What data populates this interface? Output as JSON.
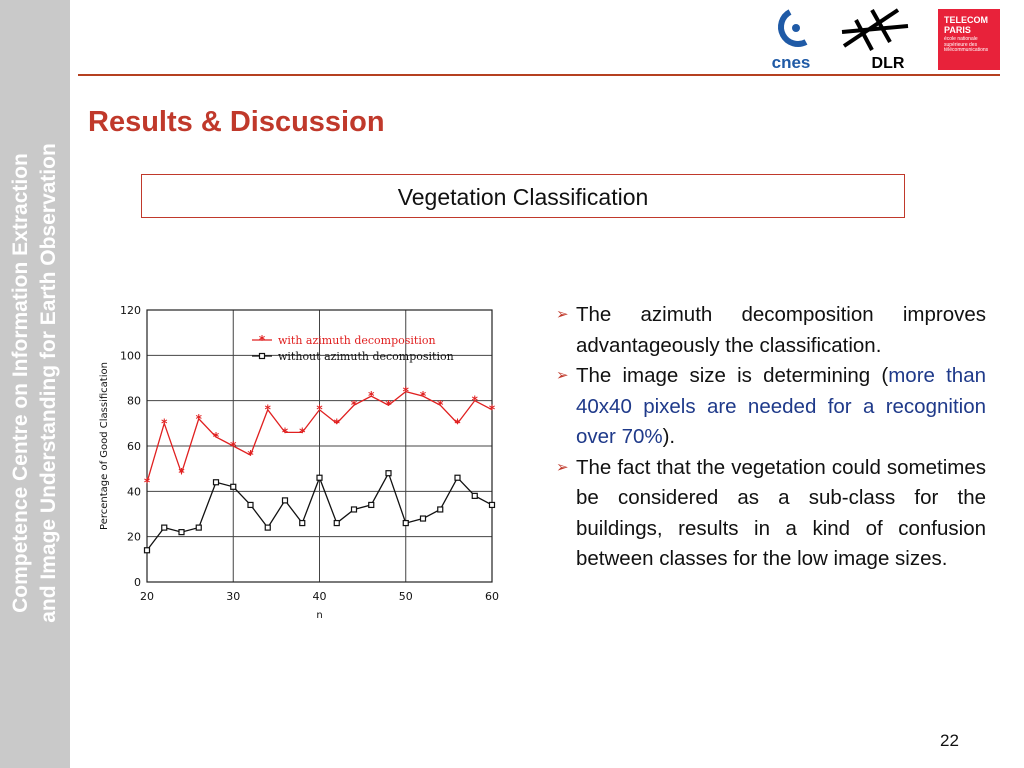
{
  "sidebar": {
    "line1": "Competence Centre on Information Extraction",
    "line2": "and Image Understanding for Earth Observation"
  },
  "logos": {
    "cnes": "cnes",
    "dlr": "DLR",
    "telecom_title_1": "TELECOM",
    "telecom_title_2": "PARIS",
    "telecom_sub": "école nationale supérieure des télécommunications"
  },
  "title": "Results & Discussion",
  "subtitle": "Vegetation Classification",
  "bullets": [
    {
      "text": "The azimuth decomposition improves advantageously the classification."
    },
    {
      "pre": "The image size is determining (",
      "highlight": "more than 40x40 pixels are needed for a recognition over 70%",
      "post": ")."
    },
    {
      "text": "The fact that the vegetation could sometimes be considered as a sub-class for the buildings, results in a kind of confusion between classes for the low image sizes."
    }
  ],
  "page_number": "22",
  "colors": {
    "accent": "#c0392b",
    "highlight": "#1f3a8a",
    "sidebar": "#c9c9c9"
  },
  "chart_data": {
    "type": "line",
    "xlabel": "n",
    "ylabel": "Percentage of Good Classification",
    "xlim": [
      20,
      60
    ],
    "ylim": [
      0,
      120
    ],
    "xticks": [
      20,
      30,
      40,
      50,
      60
    ],
    "yticks": [
      0,
      20,
      40,
      60,
      80,
      100,
      120
    ],
    "grid": true,
    "legend": "top-right",
    "x": [
      20,
      22,
      24,
      26,
      28,
      30,
      32,
      34,
      36,
      38,
      40,
      42,
      44,
      46,
      48,
      50,
      52,
      54,
      56,
      58,
      60
    ],
    "series": [
      {
        "name": "with azimuth decomposition",
        "color": "#e02020",
        "marker": "star",
        "values": [
          44,
          70,
          48,
          72,
          64,
          60,
          56,
          76,
          66,
          66,
          76,
          70,
          78,
          82,
          78,
          84,
          82,
          78,
          70,
          80,
          76
        ]
      },
      {
        "name": "without azimuth decomposition",
        "color": "#111111",
        "marker": "square",
        "values": [
          14,
          24,
          22,
          24,
          44,
          42,
          34,
          24,
          36,
          26,
          46,
          26,
          32,
          34,
          48,
          26,
          28,
          32,
          46,
          38,
          34
        ]
      }
    ]
  }
}
